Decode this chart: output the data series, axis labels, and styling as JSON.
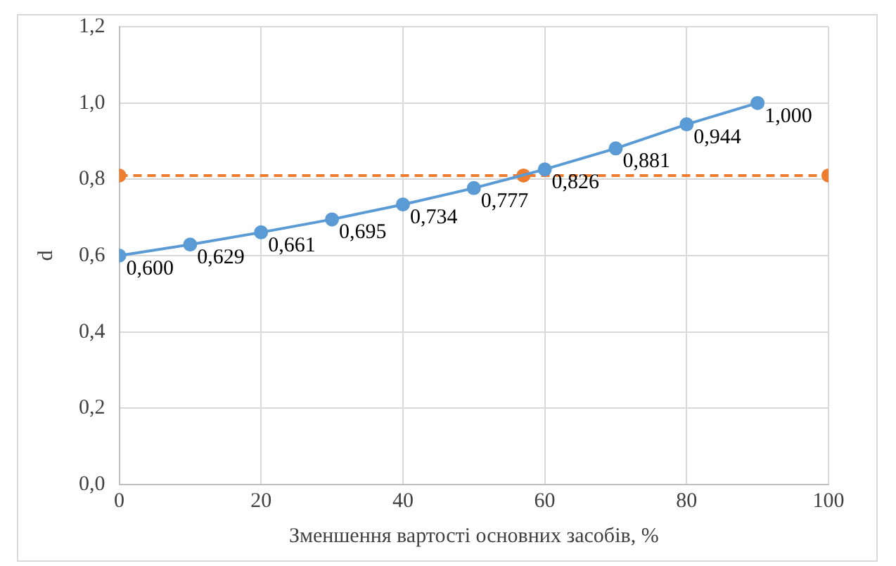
{
  "chart_data": {
    "type": "line",
    "xlabel": "Зменшення вартості основних засобів, %",
    "ylabel": "d",
    "xlim": [
      0,
      100
    ],
    "xticks": [
      0,
      20,
      40,
      60,
      80,
      100
    ],
    "ylim": [
      0,
      1.2
    ],
    "yticks": [
      {
        "value": 0,
        "label": "0,0"
      },
      {
        "value": 0.2,
        "label": "0,2"
      },
      {
        "value": 0.4,
        "label": "0,4"
      },
      {
        "value": 0.6,
        "label": "0,6"
      },
      {
        "value": 0.8,
        "label": "0,8"
      },
      {
        "value": 1.0,
        "label": "1,0"
      },
      {
        "value": 1.2,
        "label": "1,2"
      }
    ],
    "grid": true,
    "legend": false,
    "marker": "circle",
    "series": [
      {
        "color": "#5b9bd5",
        "line_style": "solid",
        "x": [
          0,
          10,
          20,
          30,
          40,
          50,
          60,
          70,
          80,
          90
        ],
        "values": [
          0.6,
          0.629,
          0.661,
          0.695,
          0.734,
          0.777,
          0.826,
          0.881,
          0.944,
          1.0
        ],
        "value_labels": [
          "0,600",
          "0,629",
          "0,661",
          "0,695",
          "0,734",
          "0,777",
          "0,826",
          "0,881",
          "0,944",
          "1,000"
        ]
      },
      {
        "color": "#ed7d31",
        "line_style": "dashed",
        "x": [
          0,
          57,
          100
        ],
        "values": [
          0.81,
          0.81,
          0.81
        ]
      }
    ]
  }
}
